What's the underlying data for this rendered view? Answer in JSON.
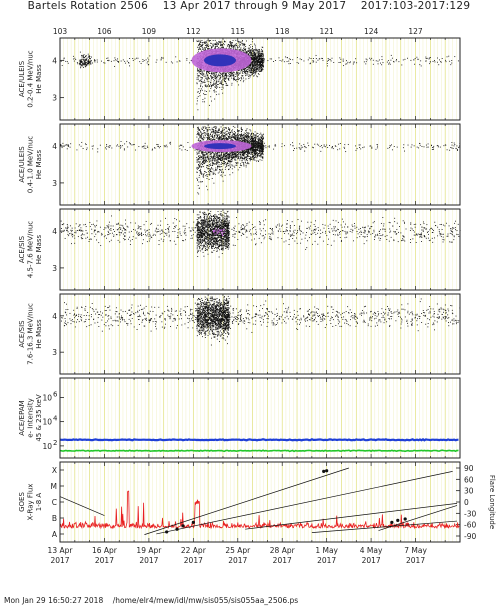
{
  "header": {
    "title": "Bartels Rotation 2506    13 Apr 2017 through 9 May 2017    2017:103-2017:129"
  },
  "footer": {
    "text": "Mon Jan 29 16:50:27 2018    /home/elr4/mew/idl/mw/sis055/sis055aa_2506.ps"
  },
  "chart_data": {
    "type": "scatter",
    "x_axis": {
      "range": [
        "2017-04-13",
        "2017-05-10"
      ],
      "tick_labels": [
        {
          "date": "13 Apr",
          "year": "2017"
        },
        {
          "date": "16 Apr",
          "year": "2017"
        },
        {
          "date": "19 Apr",
          "year": "2017"
        },
        {
          "date": "22 Apr",
          "year": "2017"
        },
        {
          "date": "25 Apr",
          "year": "2017"
        },
        {
          "date": "28 Apr",
          "year": "2017"
        },
        {
          "date": "1 May",
          "year": "2017"
        },
        {
          "date": "4 May",
          "year": "2017"
        },
        {
          "date": "7 May",
          "year": "2017"
        }
      ],
      "top_day_of_year_labels": [
        "103",
        "106",
        "109",
        "112",
        "115",
        "118",
        "121",
        "124",
        "127"
      ]
    },
    "panels": [
      {
        "ylabel_lines": [
          "ACE/ULEIS",
          "0.2-0.4 MeV/nuc",
          "He Mass"
        ],
        "yticks": [
          "4",
          "3"
        ],
        "ylim": [
          2.4,
          4.6
        ]
      },
      {
        "ylabel_lines": [
          "ACE/ULEIS",
          "0.4-1.0 MeV/nuc",
          "He Mass"
        ],
        "yticks": [
          "4",
          "3"
        ],
        "ylim": [
          2.4,
          4.6
        ]
      },
      {
        "ylabel_lines": [
          "ACE/SIS",
          "4.5-7.6 MeV/nuc",
          "He Mass"
        ],
        "yticks": [
          "4",
          "3"
        ],
        "ylim": [
          2.4,
          4.6
        ]
      },
      {
        "ylabel_lines": [
          "ACE/SIS",
          "7.6-16.3 MeV/nuc",
          "He Mass"
        ],
        "yticks": [
          "4",
          "3"
        ],
        "ylim": [
          2.4,
          4.6
        ]
      },
      {
        "ylabel_lines": [
          "ACE/EPAM",
          "e- Intensity",
          "45 & 235 keV"
        ],
        "yticks": [
          "10^6",
          "10^4",
          "10^2"
        ],
        "yscale": "log",
        "series": [
          {
            "color": "#1f3fd6",
            "level_log10": 2.5
          },
          {
            "color": "#22c62a",
            "level_log10": 1.6
          }
        ]
      },
      {
        "ylabel_lines": [
          "GOES",
          "X-Ray Flux",
          "1-8 A"
        ],
        "yticks_left": [
          "X",
          "M",
          "C",
          "B",
          "A"
        ],
        "ylabel_right": "Flare Longitude",
        "yticks_right": [
          "90",
          "60",
          "30",
          "0",
          "-30",
          "-60",
          "-90"
        ]
      }
    ],
    "colors": {
      "grid": "#e0e07a",
      "dot": "#111111",
      "core_inner": "#2a2fb8",
      "core_mid": "#c066d8",
      "goes": "#e82020"
    },
    "grid": true
  }
}
